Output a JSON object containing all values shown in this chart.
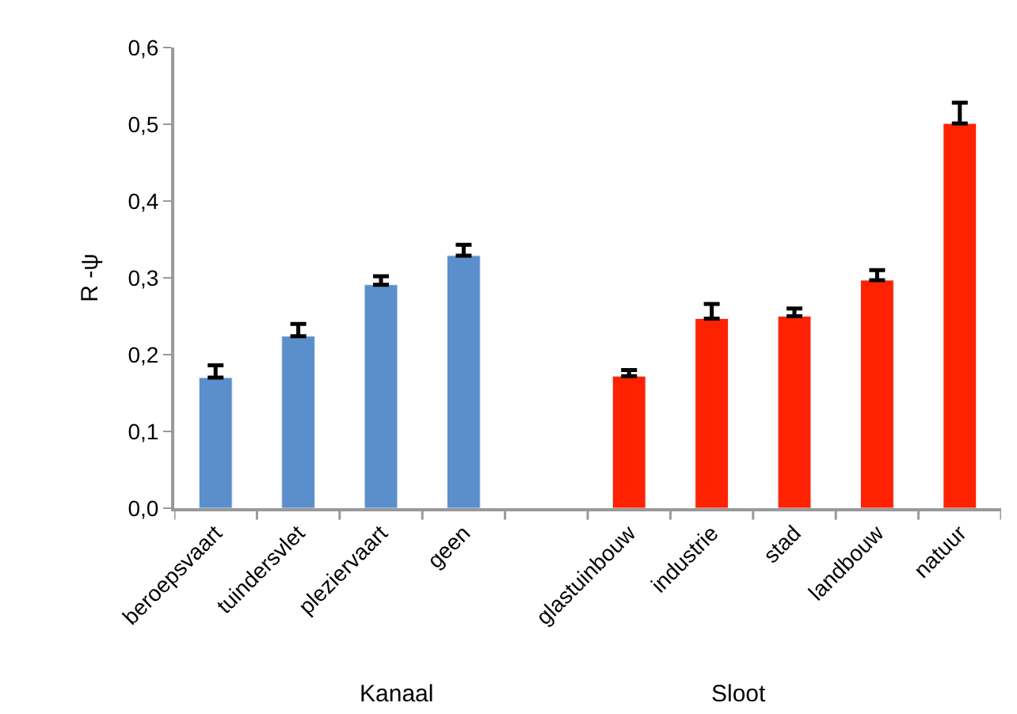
{
  "chart_data": {
    "type": "bar",
    "ylabel": "R -ψ",
    "categories": [
      "beroepsvaart",
      "tuindersvlet",
      "pleziervaart",
      "geen",
      null,
      "glastuinbouw",
      "industrie",
      "stad",
      "landbouw",
      "natuur"
    ],
    "values": [
      0.17,
      0.224,
      0.291,
      0.329,
      null,
      0.172,
      0.247,
      0.25,
      0.297,
      0.501
    ],
    "colors": [
      "#5b8fcb",
      "#5b8fcb",
      "#5b8fcb",
      "#5b8fcb",
      "#5b8fcb",
      "#ff2200",
      "#ff2200",
      "#ff2200",
      "#ff2200",
      "#ff2200"
    ],
    "errors": [
      [
        0.17,
        0.186
      ],
      [
        0.224,
        0.24
      ],
      [
        0.291,
        0.302
      ],
      [
        0.329,
        0.343
      ],
      null,
      [
        0.172,
        0.18
      ],
      [
        0.247,
        0.266
      ],
      [
        0.25,
        0.26
      ],
      [
        0.297,
        0.31
      ],
      [
        0.501,
        0.528
      ]
    ],
    "ylim": [
      0,
      0.6
    ],
    "yticks": [
      {
        "value": 0,
        "label": "0,0"
      },
      {
        "value": 0.1,
        "label": "0,1"
      },
      {
        "value": 0.2,
        "label": "0,2"
      },
      {
        "value": 0.3,
        "label": "0,3"
      },
      {
        "value": 0.4,
        "label": "0,4"
      },
      {
        "value": 0.5,
        "label": "0,5"
      },
      {
        "value": 0.6,
        "label": "0,6"
      }
    ],
    "annotations": [
      "Kanaal",
      "Sloot"
    ]
  }
}
